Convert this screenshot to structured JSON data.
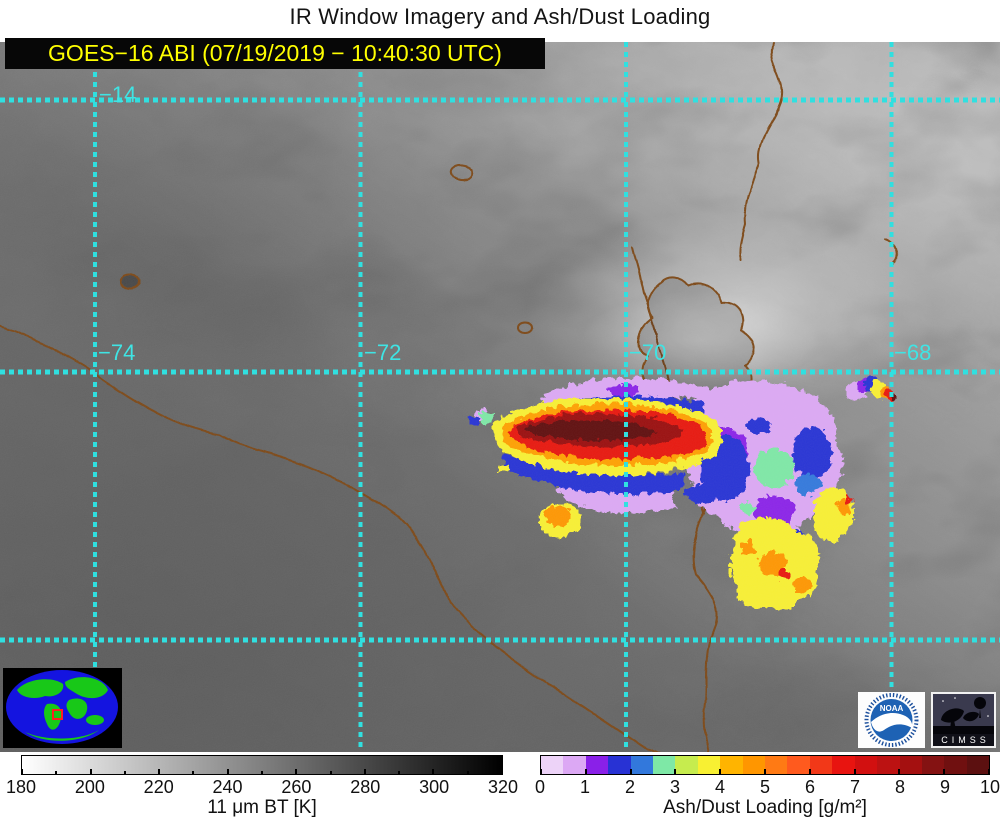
{
  "title": "IR Window Imagery and Ash/Dust Loading",
  "header": {
    "satellite_label": "GOES−16 ABI (07/19/2019 − 10:40:30 UTC)",
    "label_color": "#FFFF00",
    "label_bg": "#000000"
  },
  "map": {
    "latitude_labels": [
      {
        "text": "−14"
      }
    ],
    "longitude_labels": [
      {
        "text": "−74"
      },
      {
        "text": "−72"
      },
      {
        "text": "−70"
      },
      {
        "text": "−68"
      }
    ],
    "gridline_color": "#3FE4E4",
    "coastline_color": "#7C4612"
  },
  "colorbars": {
    "bt": {
      "caption": "11 μm BT [K]",
      "ticks": [
        "180",
        "200",
        "220",
        "240",
        "260",
        "280",
        "300",
        "320"
      ],
      "gradient_start": "#FFFFFF",
      "gradient_end": "#000000"
    },
    "ash": {
      "caption": "Ash/Dust Loading [g/m²]",
      "ticks": [
        "0",
        "1",
        "2",
        "3",
        "4",
        "5",
        "6",
        "7",
        "8",
        "9",
        "10"
      ],
      "segment_colors": [
        "#EDD3F8",
        "#DCA8F4",
        "#8A20E8",
        "#2832D4",
        "#3278DC",
        "#7EE8A6",
        "#C6EC4E",
        "#F8F032",
        "#FFB400",
        "#FF9600",
        "#FF7A14",
        "#FF5A1E",
        "#F23818",
        "#E81410",
        "#D21010",
        "#BC1212",
        "#A41010",
        "#841212",
        "#701010",
        "#5C1010"
      ]
    }
  },
  "logos": {
    "noaa_text": "NOAA",
    "cimss_text": "CIMSS"
  }
}
